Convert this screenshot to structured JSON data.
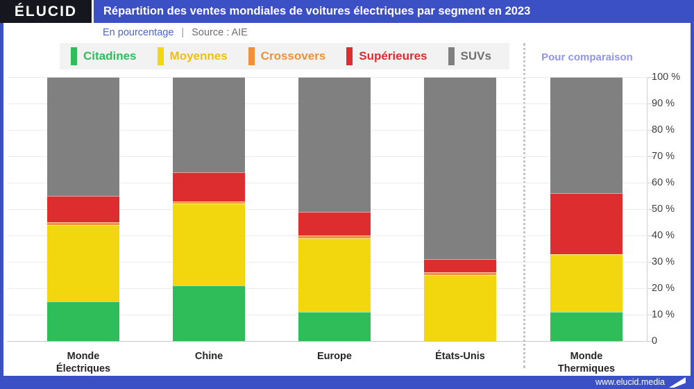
{
  "header": {
    "logo": "ÉLUCID",
    "title": "Répartition des ventes mondiales de voitures électriques par segment en 2023"
  },
  "subtitle": {
    "unit": "En pourcentage",
    "separator": "|",
    "source": "Source : AIE"
  },
  "comparison_label": "Pour comparaison",
  "footer": {
    "url": "www.elucid.media"
  },
  "colors": {
    "brand_blue": "#3b50c4",
    "logo_background": "#16161e",
    "legend_background": "#f2f2f2",
    "comparison_text": "#9095e7"
  },
  "chart_data": {
    "type": "bar",
    "stacked": true,
    "title": "Répartition des ventes mondiales de voitures électriques par segment en 2023",
    "unit": "En pourcentage",
    "source": "Source : AIE",
    "categories": [
      "Monde Électriques",
      "Chine",
      "Europe",
      "États-Unis",
      "Monde Thermiques"
    ],
    "category_label_lines": [
      [
        "Monde",
        "Électriques"
      ],
      [
        "Chine"
      ],
      [
        "Europe"
      ],
      [
        "États-Unis"
      ],
      [
        "Monde",
        "Thermiques"
      ]
    ],
    "series": [
      {
        "name": "Citadines",
        "color": "#2ebd59",
        "values": [
          15,
          21,
          11,
          0,
          11
        ]
      },
      {
        "name": "Moyennes",
        "color": "#f2d60e",
        "label_color": "#edbf10",
        "values": [
          29,
          31,
          28,
          25,
          22
        ]
      },
      {
        "name": "Crossovers",
        "color": "#f0913a",
        "values": [
          1,
          1,
          1,
          1,
          0
        ]
      },
      {
        "name": "Supérieures",
        "color": "#dd2d2f",
        "values": [
          10,
          11,
          9,
          5,
          23
        ]
      },
      {
        "name": "SUVs",
        "color": "#808080",
        "label_color": "#6e6e6e",
        "values": [
          45,
          36,
          51,
          69,
          44
        ]
      }
    ],
    "ylim": [
      0,
      100
    ],
    "ytick_labels": [
      "100 %",
      "90 %",
      "80 %",
      "70 %",
      "60 %",
      "50 %",
      "40 %",
      "30 %",
      "20 %",
      "10 %",
      "0"
    ],
    "grid": true,
    "axis_side": "right",
    "legend_position": "top",
    "comparison_group": "Monde Thermiques"
  }
}
